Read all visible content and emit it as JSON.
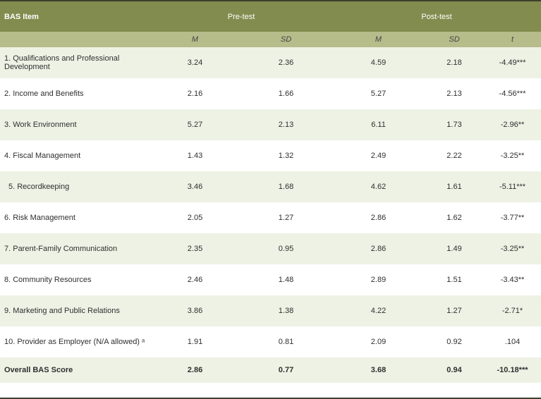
{
  "header": {
    "item": "BAS Item",
    "pre": "Pre-test",
    "post": "Post-test"
  },
  "subheader": {
    "pre_m": "M",
    "pre_sd": "SD",
    "post_m": "M",
    "post_sd": "SD",
    "t": "t"
  },
  "rows": [
    {
      "item": "1. Qualifications and Professional Development",
      "pre_m": "3.24",
      "pre_sd": "2.36",
      "post_m": "4.59",
      "post_sd": "2.18",
      "t": "-4.49***"
    },
    {
      "item": "2. Income and Benefits",
      "pre_m": "2.16",
      "pre_sd": "1.66",
      "post_m": "5.27",
      "post_sd": "2.13",
      "t": "-4.56***"
    },
    {
      "item": "3. Work Environment",
      "pre_m": "5.27",
      "pre_sd": "2.13",
      "post_m": "6.11",
      "post_sd": "1.73",
      "t": "-2.96**"
    },
    {
      "item": "4. Fiscal Management",
      "pre_m": "1.43",
      "pre_sd": "1.32",
      "post_m": "2.49",
      "post_sd": "2.22",
      "t": "-3.25**"
    },
    {
      "item": "  5. Recordkeeping",
      "pre_m": "3.46",
      "pre_sd": "1.68",
      "post_m": "4.62",
      "post_sd": "1.61",
      "t": "-5.11***"
    },
    {
      "item": "6. Risk Management",
      "pre_m": "2.05",
      "pre_sd": "1.27",
      "post_m": "2.86",
      "post_sd": "1.62",
      "t": "-3.77**"
    },
    {
      "item": "7. Parent-Family Communication",
      "pre_m": "2.35",
      "pre_sd": "0.95",
      "post_m": "2.86",
      "post_sd": "1.49",
      "t": "-3.25**"
    },
    {
      "item": "8. Community Resources",
      "pre_m": "2.46",
      "pre_sd": "1.48",
      "post_m": "2.89",
      "post_sd": "1.51",
      "t": "-3.43**"
    },
    {
      "item": "9. Marketing and Public Relations",
      "pre_m": "3.86",
      "pre_sd": "1.38",
      "post_m": "4.22",
      "post_sd": "1.27",
      "t": "-2.71*"
    },
    {
      "item": "10. Provider as Employer (N/A allowed) ᵃ",
      "pre_m": "1.91",
      "pre_sd": "0.81",
      "post_m": "2.09",
      "post_sd": "0.92",
      "t": ".104"
    }
  ],
  "total": {
    "item": "Overall BAS Score",
    "pre_m": "2.86",
    "pre_sd": "0.77",
    "post_m": "3.68",
    "post_sd": "0.94",
    "t": "-10.18***"
  },
  "colors": {
    "header_bg": "#828c4e",
    "subheader_bg": "#b6bc8a",
    "stripe_bg": "#eef2e5"
  }
}
